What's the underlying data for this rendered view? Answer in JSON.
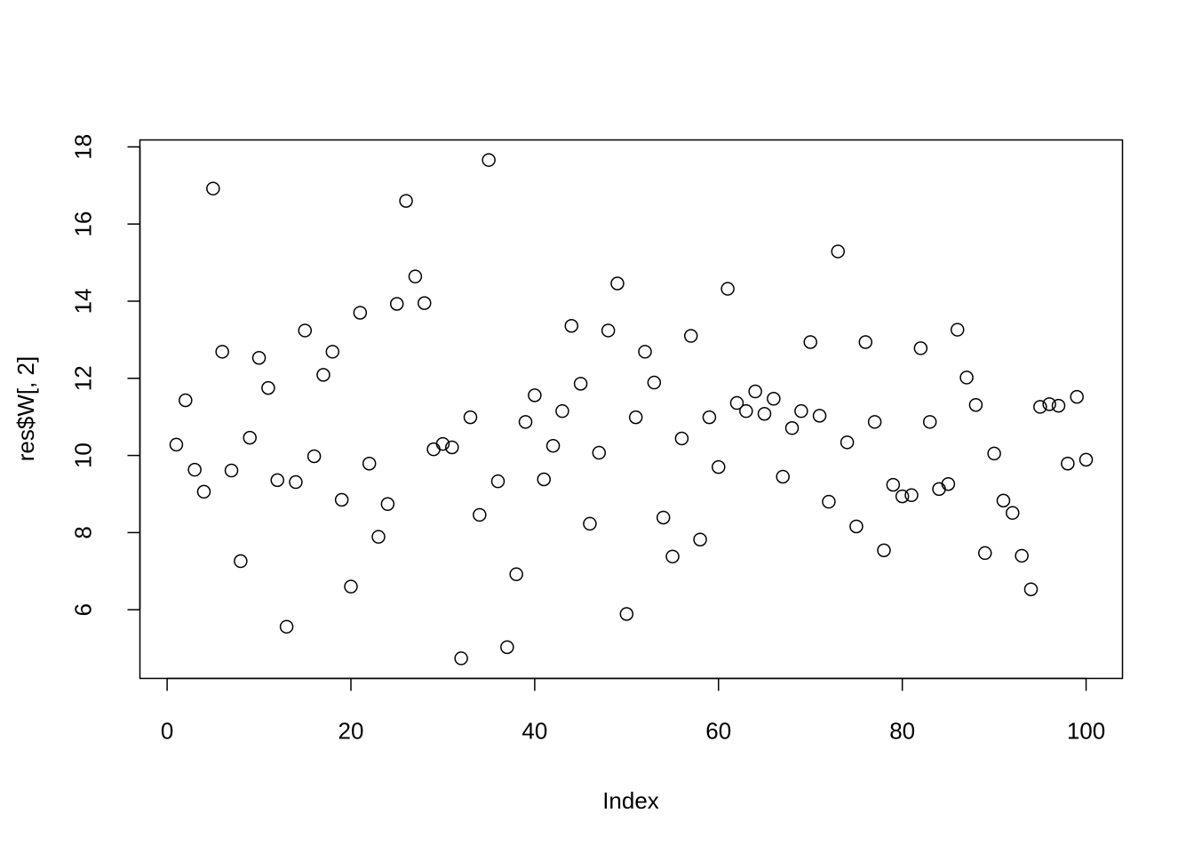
{
  "chart_data": {
    "type": "scatter",
    "title": "",
    "xlabel": "Index",
    "ylabel": "res$W[, 2]",
    "xlim": [
      -2.96,
      103.96
    ],
    "ylim": [
      4.22,
      18.18
    ],
    "xticks": [
      0,
      20,
      40,
      60,
      80,
      100
    ],
    "yticks": [
      6,
      8,
      10,
      12,
      14,
      16,
      18
    ],
    "grid": false,
    "marker": "open-circle",
    "color": "#000000",
    "x": [
      1,
      2,
      3,
      4,
      5,
      6,
      7,
      8,
      9,
      10,
      11,
      12,
      13,
      14,
      15,
      16,
      17,
      18,
      19,
      20,
      21,
      22,
      23,
      24,
      25,
      26,
      27,
      28,
      29,
      30,
      31,
      32,
      33,
      34,
      35,
      36,
      37,
      38,
      39,
      40,
      41,
      42,
      43,
      44,
      45,
      46,
      47,
      48,
      49,
      50,
      51,
      52,
      53,
      54,
      55,
      56,
      57,
      58,
      59,
      60,
      61,
      62,
      63,
      64,
      65,
      66,
      67,
      68,
      69,
      70,
      71,
      72,
      73,
      74,
      75,
      76,
      77,
      78,
      79,
      80,
      81,
      82,
      83,
      84,
      85,
      86,
      87,
      88,
      89,
      90,
      91,
      92,
      93,
      94,
      95,
      96,
      97,
      98,
      99,
      100
    ],
    "y": [
      10.28,
      11.43,
      9.63,
      9.06,
      16.92,
      12.69,
      9.61,
      7.26,
      10.46,
      12.53,
      11.75,
      9.36,
      5.56,
      9.31,
      13.24,
      9.98,
      12.09,
      12.69,
      8.85,
      6.6,
      13.7,
      9.79,
      7.89,
      8.74,
      13.93,
      16.6,
      14.64,
      13.95,
      10.16,
      10.3,
      10.21,
      4.74,
      10.99,
      8.46,
      17.66,
      9.33,
      5.03,
      6.92,
      10.87,
      11.56,
      9.38,
      10.25,
      11.15,
      13.36,
      11.86,
      8.23,
      10.07,
      13.24,
      14.46,
      5.89,
      10.99,
      12.69,
      11.89,
      8.39,
      7.38,
      10.44,
      13.1,
      7.82,
      10.99,
      9.7,
      14.32,
      11.36,
      11.15,
      11.66,
      11.08,
      11.47,
      9.45,
      10.71,
      11.15,
      12.94,
      11.03,
      8.8,
      15.29,
      10.34,
      8.16,
      12.94,
      10.87,
      7.54,
      9.24,
      8.94,
      8.97,
      12.78,
      10.87,
      9.13,
      9.26,
      13.26,
      12.02,
      11.31,
      7.47,
      10.05,
      8.83,
      8.51,
      7.4,
      6.53,
      11.26,
      11.33,
      11.29,
      9.79,
      11.52,
      9.89
    ]
  }
}
